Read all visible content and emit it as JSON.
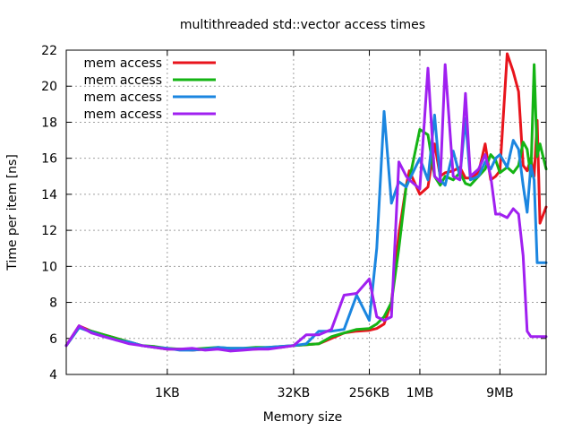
{
  "chart_data": {
    "type": "line",
    "title": "multithreaded std::vector access times",
    "xlabel": "Memory size",
    "ylabel": "Time per item [ns]",
    "x_scale": "log2",
    "x_unit": "bytes",
    "xlim": [
      64,
      33554432
    ],
    "ylim": [
      4,
      22
    ],
    "yticks": [
      4,
      6,
      8,
      10,
      12,
      14,
      16,
      18,
      20,
      22
    ],
    "xticks": [
      {
        "value": 1024,
        "label": "1KB"
      },
      {
        "value": 32768,
        "label": "32KB"
      },
      {
        "value": 262144,
        "label": "256KB"
      },
      {
        "value": 1048576,
        "label": "1MB"
      },
      {
        "value": 9437184,
        "label": "9MB"
      }
    ],
    "grid": true,
    "legend_position": "top-left",
    "series": [
      {
        "name": "mem access",
        "color": "#e8141c",
        "x": [
          64,
          91,
          128,
          181,
          256,
          362,
          512,
          724,
          1024,
          1448,
          2048,
          2896,
          4096,
          5793,
          8192,
          11585,
          16384,
          23170,
          32768,
          46341,
          65536,
          92682,
          131072,
          185364,
          262144,
          321000,
          393216,
          481000,
          589824,
          722000,
          786432,
          1048576,
          1310720,
          1572864,
          1835008,
          2097152,
          2621440,
          3145728,
          3670016,
          4194304,
          5242880,
          6291456,
          7340032,
          8388608,
          9437184,
          11534336,
          13631488,
          15728640,
          17825792,
          19922944,
          22020096,
          24117248,
          26214400,
          28311552,
          33554432
        ],
        "values": [
          5.6,
          6.7,
          6.4,
          6.2,
          6.0,
          5.8,
          5.6,
          5.5,
          5.4,
          5.4,
          5.35,
          5.4,
          5.45,
          5.4,
          5.4,
          5.4,
          5.45,
          5.5,
          5.6,
          5.65,
          5.7,
          6.0,
          6.3,
          6.4,
          6.45,
          6.55,
          6.8,
          8.0,
          11.8,
          14.5,
          15.3,
          14.0,
          14.4,
          16.8,
          15.0,
          15.2,
          15.3,
          15.5,
          14.9,
          14.9,
          15.2,
          16.8,
          14.8,
          15.0,
          15.3,
          21.8,
          20.8,
          19.7,
          15.6,
          15.3,
          16.0,
          15.0,
          18.1,
          12.4,
          13.3
        ]
      },
      {
        "name": "mem access",
        "color": "#14b414",
        "x": [
          64,
          91,
          128,
          181,
          256,
          362,
          512,
          724,
          1024,
          1448,
          2048,
          2896,
          4096,
          5793,
          8192,
          11585,
          16384,
          23170,
          32768,
          46341,
          65536,
          92682,
          131072,
          185364,
          262144,
          321000,
          393216,
          481000,
          589824,
          722000,
          786432,
          1048576,
          1310720,
          1572864,
          1835008,
          2097152,
          2621440,
          3145728,
          3670016,
          4194304,
          5242880,
          6291456,
          7340032,
          8388608,
          9437184,
          11534336,
          13631488,
          15728640,
          17825792,
          19922944,
          22020096,
          24117248,
          26214400,
          28311552,
          33554432
        ],
        "values": [
          5.6,
          6.6,
          6.4,
          6.2,
          6.0,
          5.8,
          5.6,
          5.55,
          5.45,
          5.4,
          5.4,
          5.45,
          5.5,
          5.45,
          5.45,
          5.5,
          5.5,
          5.55,
          5.6,
          5.65,
          5.7,
          6.1,
          6.3,
          6.5,
          6.55,
          6.8,
          7.2,
          8.0,
          11.0,
          14.5,
          14.8,
          17.6,
          17.3,
          15.0,
          14.5,
          15.0,
          14.8,
          15.2,
          14.6,
          14.5,
          15.0,
          15.4,
          16.2,
          15.9,
          15.2,
          15.5,
          15.2,
          15.6,
          16.9,
          16.5,
          15.0,
          21.2,
          16.1,
          16.8,
          15.4
        ]
      },
      {
        "name": "mem access",
        "color": "#1b86e0",
        "x": [
          64,
          91,
          128,
          181,
          256,
          362,
          512,
          724,
          1024,
          1448,
          2048,
          2896,
          4096,
          5793,
          8192,
          11585,
          16384,
          23170,
          32768,
          46341,
          65536,
          92682,
          131072,
          185364,
          262144,
          321000,
          393216,
          481000,
          589824,
          722000,
          786432,
          1048576,
          1310720,
          1572864,
          1835008,
          2097152,
          2621440,
          3145728,
          3670016,
          4194304,
          5242880,
          6291456,
          7340032,
          8388608,
          9437184,
          11534336,
          13631488,
          15728640,
          17825792,
          19922944,
          22020096,
          24117248,
          26214400,
          28311552,
          33554432
        ],
        "values": [
          5.6,
          6.6,
          6.35,
          6.1,
          5.9,
          5.8,
          5.6,
          5.5,
          5.45,
          5.35,
          5.35,
          5.4,
          5.5,
          5.45,
          5.45,
          5.45,
          5.5,
          5.55,
          5.6,
          5.7,
          6.4,
          6.4,
          6.5,
          8.4,
          7.0,
          11.0,
          18.6,
          13.5,
          14.7,
          14.4,
          14.8,
          16.0,
          14.8,
          18.4,
          14.8,
          14.5,
          16.4,
          15.0,
          18.2,
          14.8,
          15.0,
          15.8,
          15.4,
          16.0,
          16.2,
          15.5,
          17.0,
          16.5,
          14.5,
          13.0,
          15.6,
          14.8,
          10.2,
          10.2,
          10.2
        ]
      },
      {
        "name": "mem access",
        "color": "#a020f0",
        "x": [
          64,
          91,
          128,
          181,
          256,
          362,
          512,
          724,
          1024,
          1448,
          2048,
          2896,
          4096,
          5793,
          8192,
          11585,
          16384,
          23170,
          32768,
          46341,
          65536,
          92682,
          131072,
          185364,
          262144,
          321000,
          393216,
          481000,
          589824,
          722000,
          786432,
          1048576,
          1310720,
          1572864,
          1835008,
          2097152,
          2621440,
          3145728,
          3670016,
          4194304,
          5242880,
          6291456,
          7340032,
          8388608,
          9437184,
          11534336,
          13631488,
          15728640,
          17825792,
          19922944,
          22020096,
          24117248,
          26214400,
          28311552,
          33554432
        ],
        "values": [
          5.6,
          6.7,
          6.3,
          6.1,
          5.9,
          5.7,
          5.6,
          5.5,
          5.4,
          5.4,
          5.45,
          5.35,
          5.4,
          5.3,
          5.35,
          5.4,
          5.4,
          5.5,
          5.6,
          6.2,
          6.2,
          6.5,
          8.4,
          8.5,
          9.3,
          7.2,
          7.0,
          7.2,
          15.8,
          15.0,
          14.8,
          14.3,
          21.0,
          15.0,
          14.7,
          21.2,
          15.0,
          14.8,
          19.6,
          15.0,
          15.4,
          16.2,
          15.0,
          12.9,
          12.9,
          12.7,
          13.2,
          12.9,
          10.6,
          6.4,
          6.1,
          6.1,
          6.1,
          6.1,
          6.1
        ]
      }
    ]
  }
}
